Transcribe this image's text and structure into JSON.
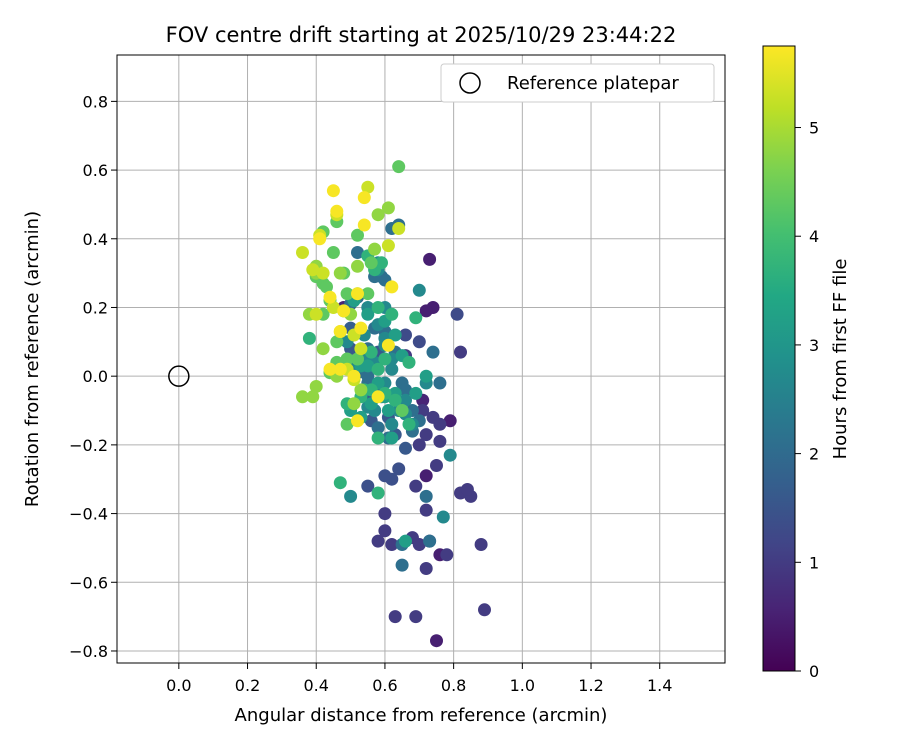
{
  "chart_data": {
    "type": "scatter",
    "title": "FOV centre drift starting at 2025/10/29 23:44:22",
    "xlabel": "Angular distance from reference (arcmin)",
    "ylabel": "Rotation from reference (arcmin)",
    "xlim": [
      -0.18,
      1.59
    ],
    "ylim": [
      -0.835,
      0.935
    ],
    "xticks": [
      0.0,
      0.2,
      0.4,
      0.6,
      0.8,
      1.0,
      1.2,
      1.4
    ],
    "xtick_labels": [
      "0.0",
      "0.2",
      "0.4",
      "0.6",
      "0.8",
      "1.0",
      "1.2",
      "1.4"
    ],
    "yticks": [
      -0.8,
      -0.6,
      -0.4,
      -0.2,
      0.0,
      0.2,
      0.4,
      0.6,
      0.8
    ],
    "ytick_labels": [
      "−0.8",
      "−0.6",
      "−0.4",
      "−0.2",
      "0.0",
      "0.2",
      "0.4",
      "0.6",
      "0.8"
    ],
    "grid": true,
    "legend": {
      "position": "top-right",
      "entries": [
        "Reference platepar"
      ]
    },
    "reference_point": {
      "x": 0.0,
      "y": 0.0
    },
    "colorbar": {
      "label": "Hours from first FF file",
      "colormap": "viridis",
      "range": [
        0,
        5.75
      ],
      "ticks": [
        0,
        1,
        2,
        3,
        4,
        5
      ],
      "tick_labels": [
        "0",
        "1",
        "2",
        "3",
        "4",
        "5"
      ]
    },
    "points": [
      [
        0.73,
        0.34,
        0.5
      ],
      [
        0.74,
        0.2,
        0.5
      ],
      [
        0.72,
        0.19,
        0.5
      ],
      [
        0.75,
        -0.77,
        0.5
      ],
      [
        0.72,
        -0.29,
        0.5
      ],
      [
        0.79,
        -0.13,
        0.5
      ],
      [
        0.76,
        -0.52,
        0.5
      ],
      [
        0.71,
        -0.07,
        0.6
      ],
      [
        0.48,
        0.2,
        0.6
      ],
      [
        0.82,
        0.07,
        1.0
      ],
      [
        0.89,
        -0.68,
        1.0
      ],
      [
        0.88,
        -0.49,
        1.0
      ],
      [
        0.85,
        -0.35,
        1.0
      ],
      [
        0.82,
        -0.34,
        1.0
      ],
      [
        0.84,
        -0.33,
        1.0
      ],
      [
        0.78,
        -0.52,
        1.0
      ],
      [
        0.72,
        -0.39,
        1.0
      ],
      [
        0.7,
        -0.49,
        1.0
      ],
      [
        0.68,
        -0.47,
        1.0
      ],
      [
        0.72,
        -0.56,
        1.0
      ],
      [
        0.75,
        -0.26,
        1.0
      ],
      [
        0.76,
        -0.14,
        1.0
      ],
      [
        0.71,
        -0.1,
        1.0
      ],
      [
        0.72,
        -0.17,
        1.0
      ],
      [
        0.74,
        -0.12,
        1.0
      ],
      [
        0.76,
        -0.19,
        1.0
      ],
      [
        0.7,
        -0.2,
        1.0
      ],
      [
        0.66,
        0.06,
        1.0
      ],
      [
        0.62,
        -0.49,
        1.0
      ],
      [
        0.6,
        -0.45,
        1.0
      ],
      [
        0.58,
        -0.48,
        1.0
      ],
      [
        0.6,
        -0.4,
        1.0
      ],
      [
        0.63,
        -0.7,
        1.0
      ],
      [
        0.69,
        -0.7,
        1.0
      ],
      [
        0.69,
        -0.32,
        1.0
      ],
      [
        0.73,
        -0.48,
        1.0
      ],
      [
        0.81,
        0.18,
        1.3
      ],
      [
        0.7,
        0.1,
        1.3
      ],
      [
        0.66,
        0.12,
        1.3
      ],
      [
        0.64,
        -0.27,
        1.4
      ],
      [
        0.62,
        -0.3,
        1.4
      ],
      [
        0.6,
        -0.29,
        1.4
      ],
      [
        0.55,
        -0.32,
        1.4
      ],
      [
        0.56,
        -0.13,
        1.6
      ],
      [
        0.55,
        -0.05,
        1.6
      ],
      [
        0.58,
        0.07,
        1.6
      ],
      [
        0.61,
        -0.12,
        1.6
      ],
      [
        0.63,
        -0.17,
        1.6
      ],
      [
        0.66,
        -0.21,
        1.6
      ],
      [
        0.5,
        0.08,
        1.6
      ],
      [
        0.5,
        0.14,
        1.7
      ],
      [
        0.73,
        -0.48,
        2.1
      ],
      [
        0.72,
        -0.35,
        2.1
      ],
      [
        0.74,
        0.07,
        2.1
      ],
      [
        0.76,
        -0.02,
        2.1
      ],
      [
        0.65,
        -0.55,
        2.1
      ],
      [
        0.65,
        -0.49,
        2.1
      ],
      [
        0.62,
        0.43,
        2.1
      ],
      [
        0.64,
        0.44,
        2.1
      ],
      [
        0.6,
        0.28,
        2.1
      ],
      [
        0.59,
        0.29,
        2.1
      ],
      [
        0.57,
        0.29,
        2.1
      ],
      [
        0.52,
        0.36,
        2.1
      ],
      [
        0.52,
        0.23,
        2.1
      ],
      [
        0.5,
        0.21,
        2.1
      ],
      [
        0.55,
        0.08,
        2.1
      ],
      [
        0.57,
        0.14,
        2.1
      ],
      [
        0.6,
        0.13,
        2.1
      ],
      [
        0.63,
        0.07,
        2.1
      ],
      [
        0.65,
        -0.02,
        2.1
      ],
      [
        0.66,
        -0.04,
        2.1
      ],
      [
        0.68,
        -0.1,
        2.1
      ],
      [
        0.7,
        -0.13,
        2.1
      ],
      [
        0.68,
        -0.16,
        2.1
      ],
      [
        0.61,
        -0.18,
        2.1
      ],
      [
        0.58,
        -0.15,
        2.1
      ],
      [
        0.57,
        -0.1,
        2.1
      ],
      [
        0.55,
        -0.02,
        2.1
      ],
      [
        0.52,
        0.01,
        2.1
      ],
      [
        0.55,
        0.0,
        2.1
      ],
      [
        0.58,
        -0.03,
        2.1
      ],
      [
        0.77,
        -0.41,
        2.7
      ],
      [
        0.72,
        -0.02,
        2.7
      ],
      [
        0.7,
        0.25,
        2.7
      ],
      [
        0.79,
        -0.23,
        2.7
      ],
      [
        0.5,
        -0.35,
        2.7
      ],
      [
        0.6,
        0.09,
        2.7
      ],
      [
        0.62,
        0.05,
        2.7
      ],
      [
        0.57,
        0.04,
        2.7
      ],
      [
        0.54,
        0.06,
        2.7
      ],
      [
        0.51,
        0.04,
        2.7
      ],
      [
        0.49,
        0.1,
        2.7
      ],
      [
        0.54,
        0.12,
        2.7
      ],
      [
        0.6,
        0.2,
        2.7
      ],
      [
        0.55,
        0.2,
        2.7
      ],
      [
        0.58,
        0.15,
        2.7
      ],
      [
        0.6,
        0.11,
        2.7
      ],
      [
        0.62,
        0.02,
        2.7
      ],
      [
        0.6,
        -0.02,
        2.7
      ],
      [
        0.55,
        -0.09,
        2.7
      ],
      [
        0.57,
        -0.1,
        2.7
      ],
      [
        0.62,
        -0.14,
        2.7
      ],
      [
        0.64,
        -0.1,
        2.7
      ],
      [
        0.66,
        -0.11,
        2.7
      ],
      [
        0.68,
        -0.14,
        2.7
      ],
      [
        0.66,
        -0.07,
        2.7
      ],
      [
        0.59,
        -0.06,
        2.7
      ],
      [
        0.58,
        0.31,
        2.7
      ],
      [
        0.58,
        0.33,
        2.7
      ],
      [
        0.62,
        -0.18,
        3.2
      ],
      [
        0.66,
        -0.48,
        3.2
      ],
      [
        0.69,
        -0.05,
        3.2
      ],
      [
        0.72,
        0.0,
        3.2
      ],
      [
        0.65,
        0.06,
        3.2
      ],
      [
        0.63,
        0.12,
        3.2
      ],
      [
        0.6,
        0.16,
        3.2
      ],
      [
        0.55,
        0.18,
        3.2
      ],
      [
        0.51,
        0.22,
        3.2
      ],
      [
        0.53,
        0.03,
        3.2
      ],
      [
        0.55,
        0.03,
        3.2
      ],
      [
        0.58,
        -0.02,
        3.2
      ],
      [
        0.6,
        -0.06,
        3.2
      ],
      [
        0.63,
        -0.05,
        3.2
      ],
      [
        0.61,
        -0.1,
        3.2
      ],
      [
        0.56,
        -0.08,
        3.2
      ],
      [
        0.53,
        -0.12,
        3.2
      ],
      [
        0.5,
        -0.1,
        3.2
      ],
      [
        0.69,
        0.17,
        3.7
      ],
      [
        0.67,
        0.04,
        3.7
      ],
      [
        0.58,
        0.2,
        3.7
      ],
      [
        0.57,
        0.31,
        3.7
      ],
      [
        0.55,
        0.35,
        3.7
      ],
      [
        0.59,
        0.33,
        3.7
      ],
      [
        0.62,
        0.18,
        3.7
      ],
      [
        0.6,
        0.05,
        3.7
      ],
      [
        0.58,
        0.02,
        3.7
      ],
      [
        0.56,
        0.07,
        3.7
      ],
      [
        0.54,
        -0.04,
        3.7
      ],
      [
        0.6,
        -0.05,
        3.7
      ],
      [
        0.63,
        -0.07,
        3.7
      ],
      [
        0.67,
        -0.14,
        3.7
      ],
      [
        0.58,
        -0.18,
        3.7
      ],
      [
        0.56,
        -0.04,
        3.7
      ],
      [
        0.53,
        -0.06,
        3.7
      ],
      [
        0.49,
        -0.08,
        3.7
      ],
      [
        0.58,
        -0.34,
        3.7
      ],
      [
        0.47,
        -0.31,
        3.7
      ],
      [
        0.38,
        0.11,
        3.7
      ],
      [
        0.64,
        0.61,
        4.3
      ],
      [
        0.52,
        0.41,
        4.3
      ],
      [
        0.56,
        0.33,
        4.3
      ],
      [
        0.52,
        0.24,
        4.3
      ],
      [
        0.49,
        0.24,
        4.3
      ],
      [
        0.48,
        0.3,
        4.3
      ],
      [
        0.45,
        0.36,
        4.3
      ],
      [
        0.42,
        0.42,
        4.3
      ],
      [
        0.44,
        0.22,
        4.3
      ],
      [
        0.42,
        0.18,
        4.3
      ],
      [
        0.48,
        0.19,
        4.3
      ],
      [
        0.46,
        0.1,
        4.3
      ],
      [
        0.49,
        0.05,
        4.3
      ],
      [
        0.44,
        0.01,
        4.3
      ],
      [
        0.46,
        0.04,
        4.3
      ],
      [
        0.42,
        0.27,
        4.3
      ],
      [
        0.4,
        0.29,
        4.3
      ],
      [
        0.43,
        0.26,
        4.3
      ],
      [
        0.46,
        0.45,
        4.3
      ],
      [
        0.55,
        0.24,
        4.3
      ],
      [
        0.65,
        -0.1,
        4.3
      ],
      [
        0.49,
        -0.14,
        4.3
      ],
      [
        0.52,
        0.05,
        4.3
      ],
      [
        0.61,
        0.49,
        4.8
      ],
      [
        0.58,
        0.47,
        4.8
      ],
      [
        0.57,
        0.37,
        4.8
      ],
      [
        0.52,
        0.32,
        4.8
      ],
      [
        0.5,
        0.18,
        4.8
      ],
      [
        0.47,
        0.3,
        4.8
      ],
      [
        0.4,
        0.32,
        4.8
      ],
      [
        0.4,
        0.3,
        4.8
      ],
      [
        0.38,
        0.18,
        4.8
      ],
      [
        0.42,
        0.08,
        4.8
      ],
      [
        0.46,
        0.0,
        4.8
      ],
      [
        0.53,
        -0.04,
        4.8
      ],
      [
        0.51,
        -0.08,
        4.8
      ],
      [
        0.4,
        -0.03,
        4.8
      ],
      [
        0.36,
        -0.06,
        4.8
      ],
      [
        0.39,
        -0.06,
        4.8
      ],
      [
        0.55,
        0.55,
        5.3
      ],
      [
        0.46,
        0.47,
        5.3
      ],
      [
        0.41,
        0.41,
        5.3
      ],
      [
        0.36,
        0.36,
        5.3
      ],
      [
        0.42,
        0.3,
        5.3
      ],
      [
        0.39,
        0.31,
        5.3
      ],
      [
        0.4,
        0.18,
        5.3
      ],
      [
        0.45,
        0.2,
        5.3
      ],
      [
        0.47,
        0.13,
        5.3
      ],
      [
        0.51,
        0.12,
        5.3
      ],
      [
        0.53,
        0.08,
        5.3
      ],
      [
        0.49,
        0.02,
        5.3
      ],
      [
        0.51,
        -0.01,
        5.3
      ],
      [
        0.61,
        0.38,
        5.3
      ],
      [
        0.64,
        0.43,
        5.3
      ],
      [
        0.45,
        0.54,
        5.7
      ],
      [
        0.46,
        0.48,
        5.7
      ],
      [
        0.54,
        0.52,
        5.7
      ],
      [
        0.54,
        0.44,
        5.7
      ],
      [
        0.41,
        0.4,
        5.7
      ],
      [
        0.44,
        0.23,
        5.7
      ],
      [
        0.47,
        0.13,
        5.7
      ],
      [
        0.53,
        0.14,
        5.7
      ],
      [
        0.52,
        0.24,
        5.7
      ],
      [
        0.62,
        0.26,
        5.7
      ],
      [
        0.61,
        0.09,
        5.7
      ],
      [
        0.47,
        0.02,
        5.7
      ],
      [
        0.44,
        0.02,
        5.7
      ],
      [
        0.51,
        0.0,
        5.7
      ],
      [
        0.58,
        -0.06,
        5.7
      ],
      [
        0.52,
        -0.13,
        5.7
      ],
      [
        0.48,
        0.19,
        5.7
      ]
    ]
  }
}
